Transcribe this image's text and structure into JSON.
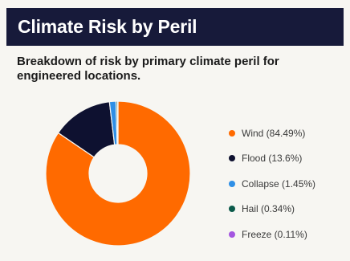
{
  "header": {
    "title": "Climate Risk by Peril"
  },
  "subtitle": "Breakdown of risk by primary climate peril for engineered locations.",
  "colors": {
    "header_bg": "#171a3a",
    "wind": "#ff6a00",
    "flood": "#0e1130",
    "collapse": "#2f8fe6",
    "hail": "#0b5a4a",
    "freeze": "#a456e0"
  },
  "chart_data": {
    "type": "pie",
    "style": "donut",
    "title": "Climate Risk by Peril",
    "subtitle": "Breakdown of risk by primary climate peril for engineered locations.",
    "legend_position": "right",
    "slices": [
      {
        "label": "Wind (84.49%)",
        "value": 84.49,
        "color": "#ff6a00"
      },
      {
        "label": "Flood (13.6%)",
        "value": 13.6,
        "color": "#0e1130"
      },
      {
        "label": "Collapse (1.45%)",
        "value": 1.45,
        "color": "#2f8fe6"
      },
      {
        "label": "Hail (0.34%)",
        "value": 0.34,
        "color": "#0b5a4a"
      },
      {
        "label": "Freeze (0.11%)",
        "value": 0.11,
        "color": "#a456e0"
      }
    ]
  }
}
